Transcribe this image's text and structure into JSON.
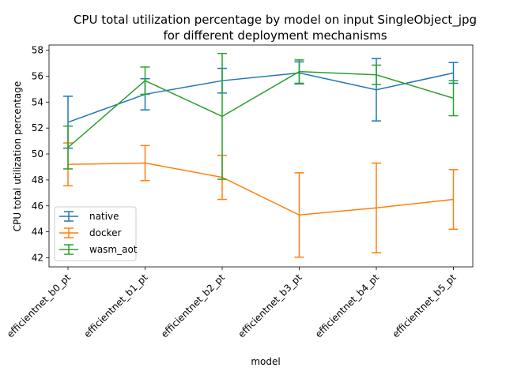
{
  "chart_data": {
    "type": "line",
    "title": "CPU total utilization percentage by model on input SingleObject_jpg",
    "subtitle": "for different deployment mechanisms",
    "xlabel": "model",
    "ylabel": "CPU total utilization percentage",
    "categories": [
      "efficientnet_b0_pt",
      "efficientnet_b1_pt",
      "efficientnet_b2_pt",
      "efficientnet_b3_pt",
      "efficientnet_b4_pt",
      "efficientnet_b5_pt"
    ],
    "ylim": [
      41.3,
      58.4
    ],
    "yticks": [
      42,
      44,
      46,
      48,
      50,
      52,
      54,
      56,
      58
    ],
    "grid": false,
    "legend_position": "lower-left",
    "series": [
      {
        "name": "native",
        "color": "#1f77b4",
        "values": [
          52.45,
          54.6,
          55.65,
          56.25,
          54.95,
          56.25
        ],
        "err": [
          2.0,
          1.2,
          0.95,
          0.85,
          2.4,
          0.8
        ]
      },
      {
        "name": "docker",
        "color": "#ff7f0e",
        "values": [
          49.2,
          49.3,
          48.2,
          45.3,
          45.85,
          46.5
        ],
        "err": [
          1.65,
          1.35,
          1.7,
          3.25,
          3.45,
          2.3
        ]
      },
      {
        "name": "wasm_aot",
        "color": "#2ca02c",
        "values": [
          50.5,
          55.65,
          52.9,
          56.35,
          56.1,
          54.3
        ],
        "err": [
          1.65,
          1.05,
          4.85,
          0.9,
          0.75,
          1.35
        ]
      }
    ]
  }
}
